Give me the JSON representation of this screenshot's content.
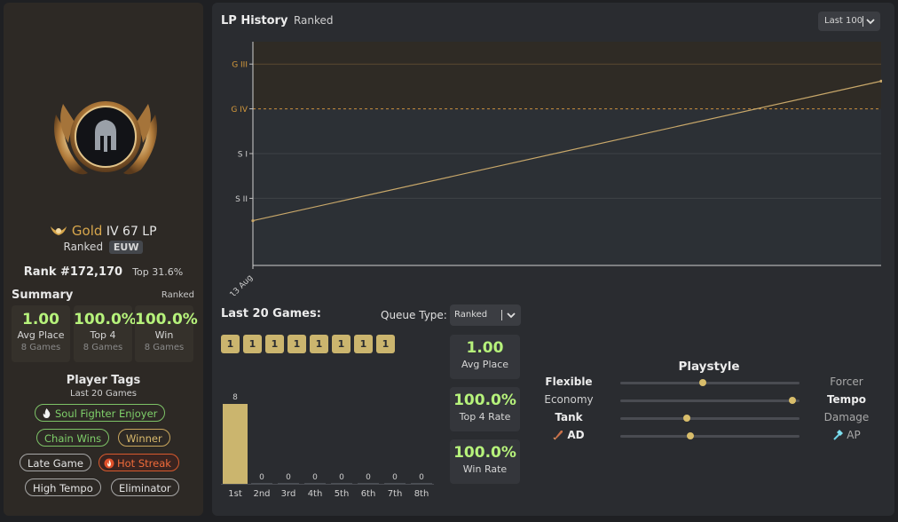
{
  "profile": {
    "tier": "Gold",
    "division": "IV",
    "lp": "67 LP",
    "queue": "Ranked",
    "region": "EUW",
    "rank_position": "Rank #172,170",
    "top_percent": "Top 31.6%",
    "emblem_icon": "gold-helmet-emblem-icon"
  },
  "summary": {
    "title": "Summary",
    "queue": "Ranked",
    "stats": [
      {
        "value": "1.00",
        "label": "Avg Place",
        "games": "8 Games"
      },
      {
        "value": "100.0%",
        "label": "Top 4",
        "games": "8 Games"
      },
      {
        "value": "100.0%",
        "label": "Win",
        "games": "8 Games"
      }
    ]
  },
  "player_tags": {
    "title": "Player Tags",
    "subtitle": "Last 20 Games",
    "tags": [
      {
        "label": "Soul Fighter Enjoyer",
        "style": "green",
        "icon": "flame-icon"
      },
      {
        "label": "Chain Wins",
        "style": "green"
      },
      {
        "label": "Winner",
        "style": "amber"
      },
      {
        "label": "Late Game",
        "style": "grey"
      },
      {
        "label": "Hot Streak",
        "style": "red",
        "icon": "fire-icon"
      },
      {
        "label": "High Tempo",
        "style": "grey"
      },
      {
        "label": "Eliminator",
        "style": "grey"
      }
    ]
  },
  "lp_history": {
    "title": "LP History",
    "subtitle": "Ranked",
    "range_selector": "Last 100"
  },
  "chart_data": {
    "type": "line",
    "x": [
      "13 Aug",
      null
    ],
    "y_labels": [
      "G III",
      "G IV",
      "S I",
      "S II"
    ],
    "y_label_colors": [
      "#d59a3c",
      "#d59a3c",
      "#cfcfcf",
      "#cfcfcf"
    ],
    "series": [
      {
        "values": [
          -0.5,
          2.62
        ],
        "color": "#c9a86a"
      }
    ],
    "ylim": [
      -1.5,
      3.5
    ],
    "grid": true,
    "gold_band_color": "#2f2b25"
  },
  "last_games": {
    "title": "Last 20 Games:",
    "queue_label": "Queue Type:",
    "queue_value": "Ranked",
    "placements": [
      "1",
      "1",
      "1",
      "1",
      "1",
      "1",
      "1",
      "1"
    ],
    "stats": [
      {
        "value": "1.00",
        "label": "Avg Place"
      },
      {
        "value": "100.0%",
        "label": "Top 4 Rate"
      },
      {
        "value": "100.0%",
        "label": "Win Rate"
      }
    ]
  },
  "placement_chart": {
    "type": "bar",
    "categories": [
      "1st",
      "2nd",
      "3rd",
      "4th",
      "5th",
      "6th",
      "7th",
      "8th"
    ],
    "values": [
      8,
      0,
      0,
      0,
      0,
      0,
      0,
      0
    ],
    "color": "#cbb56e"
  },
  "playstyle": {
    "title": "Playstyle",
    "rows": [
      {
        "left": "Flexible",
        "right": "Forcer",
        "value": 0.46,
        "bold": "left"
      },
      {
        "left": "Economy",
        "right": "Tempo",
        "value": 0.96,
        "bold": "right"
      },
      {
        "left": "Tank",
        "right": "Damage",
        "value": 0.37,
        "bold": "left"
      },
      {
        "left": "AD",
        "right": "AP",
        "value": 0.39,
        "bold": "left",
        "left_icon": "sword-icon",
        "right_icon": "magic-wand-icon"
      }
    ]
  }
}
